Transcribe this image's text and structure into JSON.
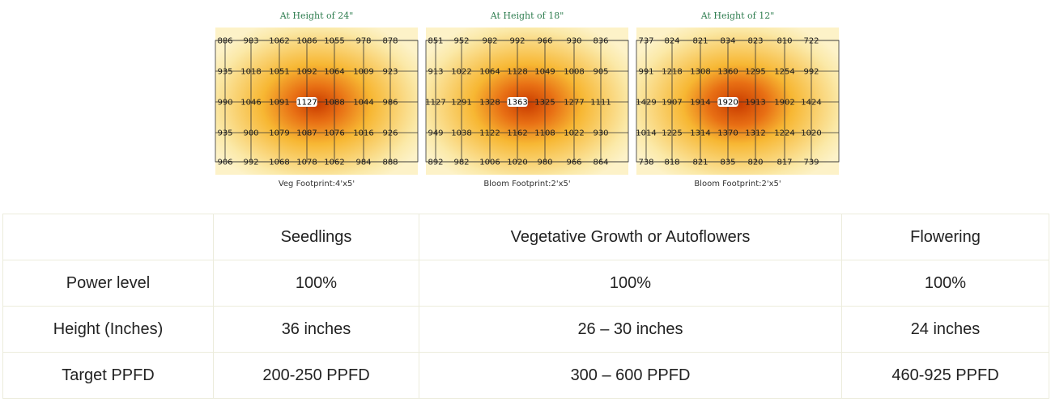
{
  "chart_data": [
    {
      "type": "heatmap",
      "title": "At Height of 24\"",
      "footer": "Veg Footprint:4'x5'",
      "grid": [
        [
          886,
          983,
          1062,
          1086,
          1055,
          978,
          878
        ],
        [
          935,
          1018,
          1051,
          1092,
          1064,
          1009,
          923
        ],
        [
          990,
          1046,
          1091,
          1127,
          1088,
          1044,
          986
        ],
        [
          935,
          900,
          1079,
          1087,
          1076,
          1016,
          926
        ],
        [
          906,
          992,
          1068,
          1078,
          1062,
          984,
          888
        ]
      ]
    },
    {
      "type": "heatmap",
      "title": "At Height of 18\"",
      "footer": "Bloom Footprint:2'x5'",
      "grid": [
        [
          851,
          952,
          982,
          992,
          966,
          930,
          836
        ],
        [
          913,
          1022,
          1064,
          1128,
          1049,
          1008,
          905
        ],
        [
          1127,
          1291,
          1328,
          1363,
          1325,
          1277,
          1111
        ],
        [
          949,
          1038,
          1122,
          1162,
          1108,
          1022,
          930
        ],
        [
          892,
          982,
          1006,
          1020,
          980,
          966,
          864
        ]
      ]
    },
    {
      "type": "heatmap",
      "title": "At Height of 12\"",
      "footer": "Bloom Footprint:2'x5'",
      "grid": [
        [
          737,
          824,
          821,
          834,
          823,
          810,
          722
        ],
        [
          991,
          1218,
          1308,
          1360,
          1295,
          1254,
          992
        ],
        [
          1429,
          1907,
          1914,
          1920,
          1913,
          1902,
          1424
        ],
        [
          1014,
          1225,
          1314,
          1370,
          1312,
          1224,
          1020
        ],
        [
          738,
          818,
          821,
          835,
          820,
          817,
          739
        ]
      ]
    }
  ],
  "colors": {
    "title_green": "#2e7d4f",
    "heat_low": "#fbe9a8",
    "heat_mid": "#f7b733",
    "heat_high": "#c93c00",
    "border": "#ececdc"
  },
  "table": {
    "header": [
      "",
      "Seedlings",
      "Vegetative Growth or Autoflowers",
      "Flowering"
    ],
    "rows": [
      [
        "Power level",
        "100%",
        "100%",
        "100%"
      ],
      [
        "Height (Inches)",
        "36 inches",
        "26 – 30 inches",
        "24 inches"
      ],
      [
        "Target PPFD",
        "200-250 PPFD",
        "300 – 600 PPFD",
        "460-925 PPFD"
      ]
    ]
  }
}
